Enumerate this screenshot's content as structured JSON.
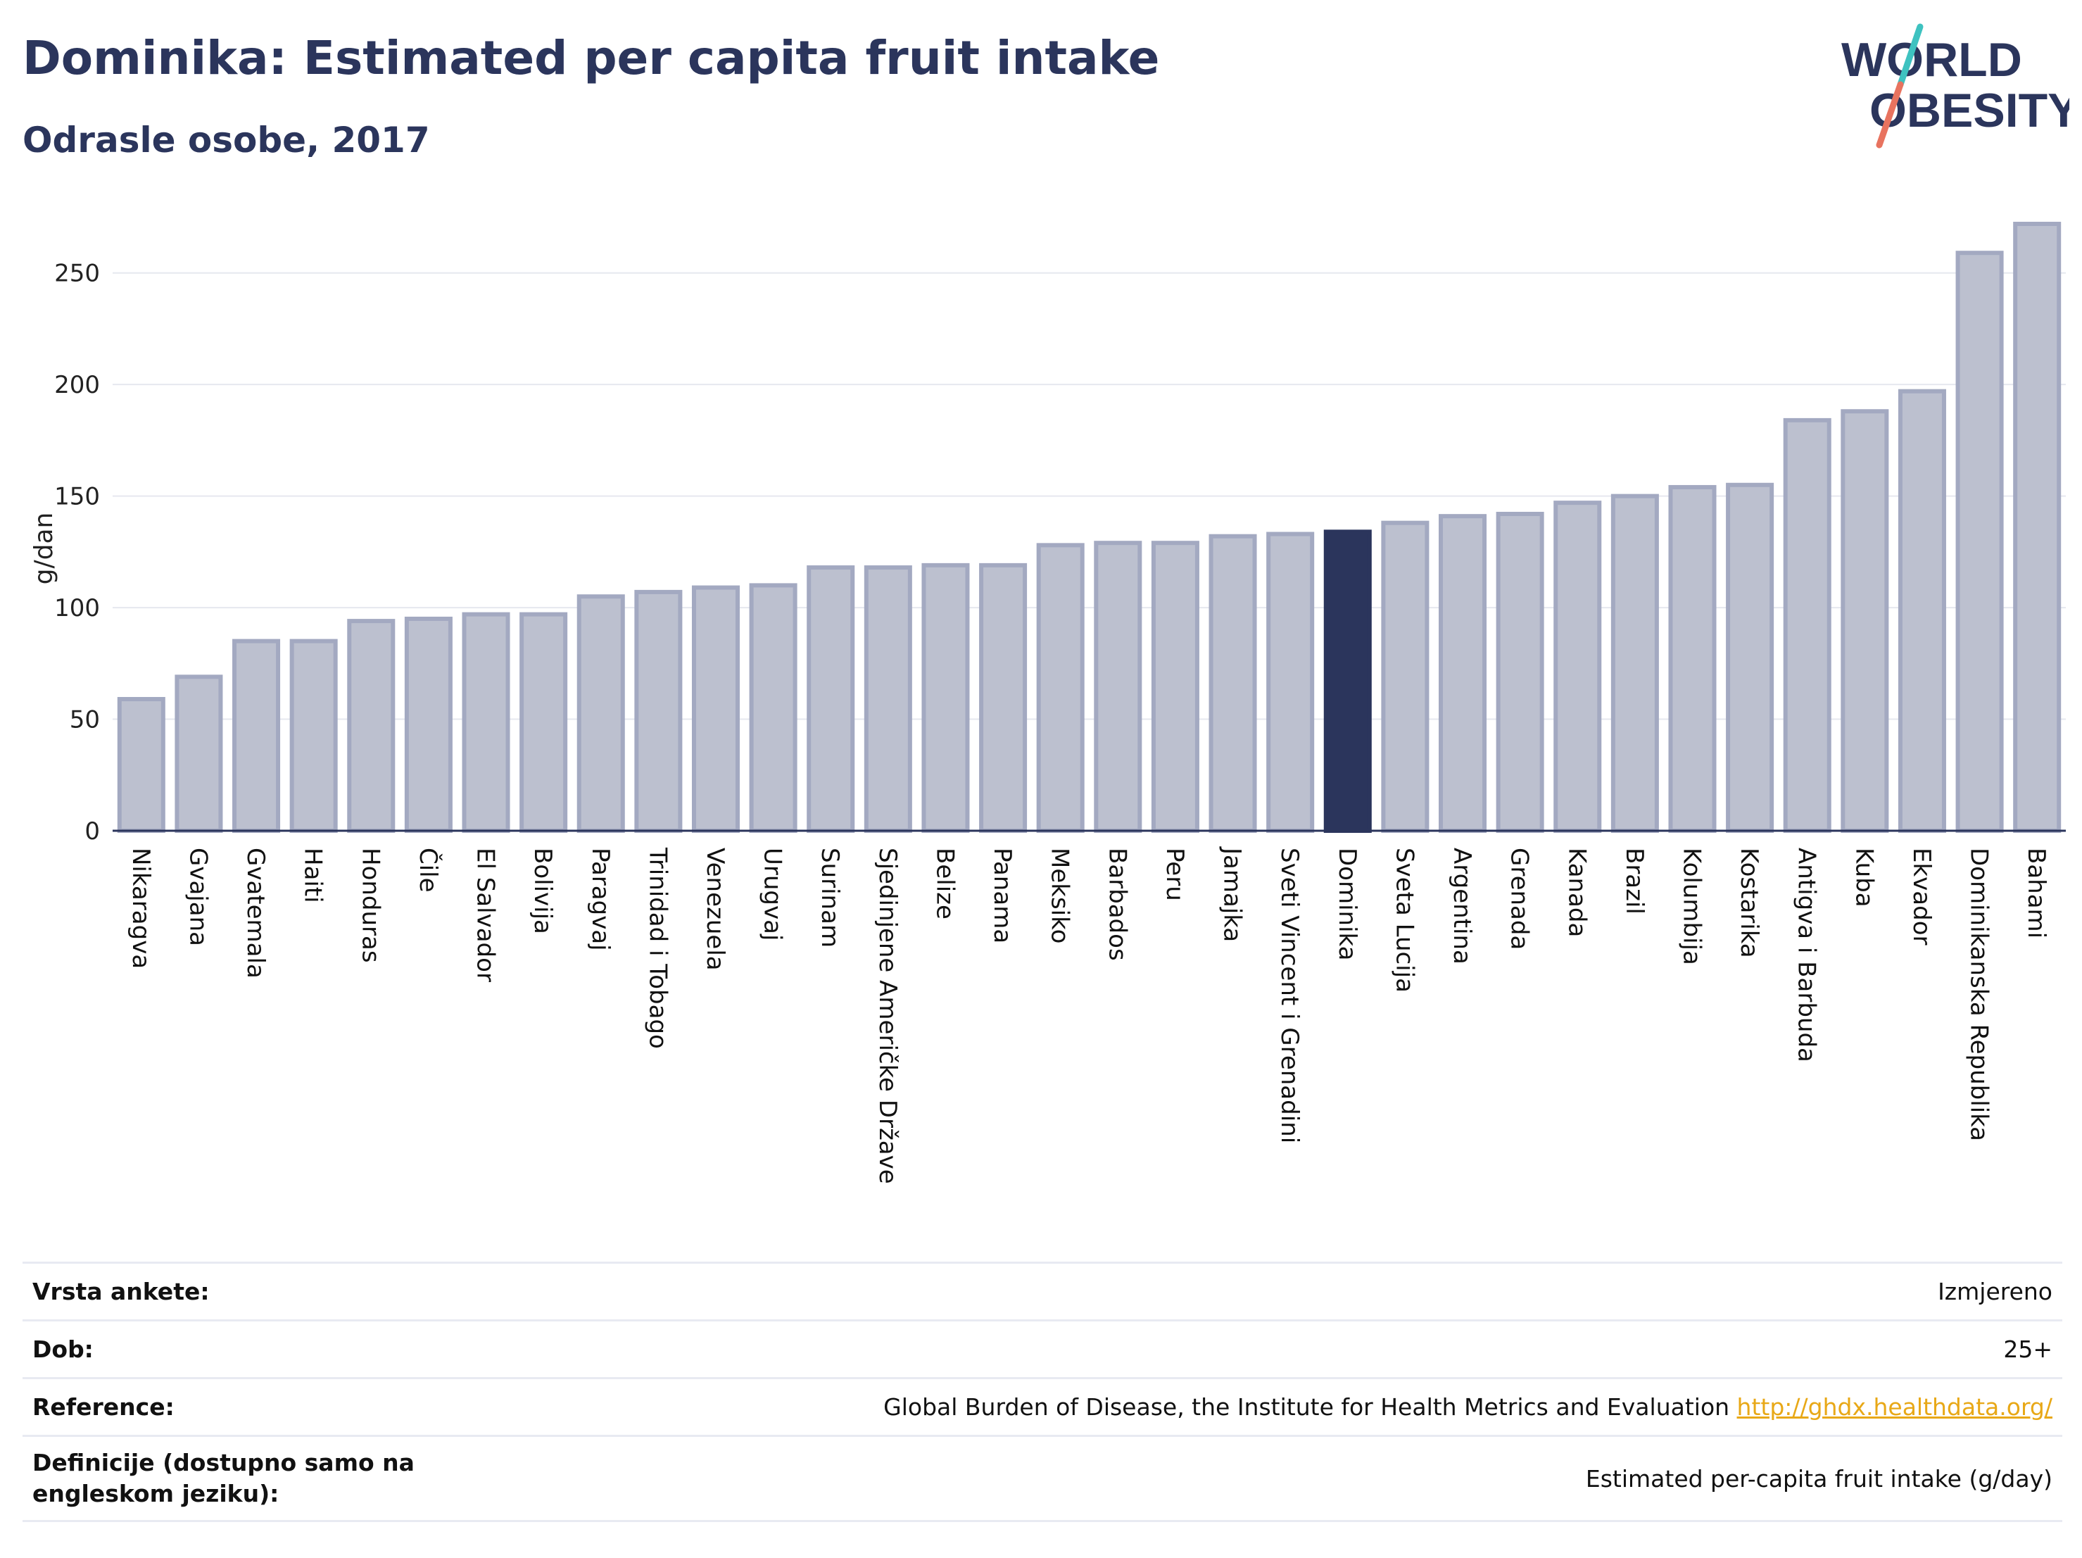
{
  "header": {
    "title": "Dominika: Estimated per capita fruit intake",
    "subtitle": "Odrasle osobe, 2017"
  },
  "logo": {
    "line1": "WORLD",
    "line2": "OBESITY"
  },
  "colors": {
    "bar": "#bcc0cf",
    "bar_edge": "#a3a9c1",
    "highlight": "#2b355c",
    "grid": "#e6e8ef",
    "text": "#2b355c",
    "logo_teal": "#3ec2c0",
    "logo_coral": "#e8735f",
    "link": "#e8a817"
  },
  "chart_data": {
    "type": "bar",
    "title": "Dominika: Estimated per capita fruit intake",
    "subtitle": "Odrasle osobe, 2017",
    "ylabel": "g/dan",
    "xlabel": "",
    "ylim": [
      0,
      272
    ],
    "yticks": [
      0,
      50,
      100,
      150,
      200,
      250
    ],
    "grid": true,
    "highlight": "Dominika",
    "categories": [
      "Nikaragva",
      "Gvajana",
      "Gvatemala",
      "Haiti",
      "Honduras",
      "Čile",
      "El Salvador",
      "Bolivija",
      "Paragvaj",
      "Trinidad i Tobago",
      "Venezuela",
      "Urugvaj",
      "Surinam",
      "Sjedinjene Američke Države",
      "Belize",
      "Panama",
      "Meksiko",
      "Barbados",
      "Peru",
      "Jamajka",
      "Sveti Vincent i Grenadini",
      "Dominika",
      "Sveta Lucija",
      "Argentina",
      "Grenada",
      "Kanada",
      "Brazil",
      "Kolumbija",
      "Kostarika",
      "Antigva i Barbuda",
      "Kuba",
      "Ekvador",
      "Dominikanska Republika",
      "Bahami"
    ],
    "values": [
      59,
      69,
      85,
      85,
      94,
      95,
      97,
      97,
      105,
      107,
      109,
      110,
      118,
      118,
      119,
      119,
      128,
      129,
      129,
      132,
      133,
      134,
      138,
      141,
      142,
      147,
      150,
      154,
      155,
      184,
      188,
      197,
      259,
      272
    ]
  },
  "footer": {
    "rows": [
      {
        "label": "Vrsta ankete:",
        "value": "Izmjereno"
      },
      {
        "label": "Dob:",
        "value": "25+"
      },
      {
        "label": "Reference:",
        "value": "Global Burden of Disease, the Institute for Health Metrics and Evaluation",
        "link": "http://ghdx.healthdata.org/"
      },
      {
        "label": "Definicije (dostupno samo na engleskom jeziku):",
        "value": "Estimated per-capita fruit intake (g/day)"
      }
    ]
  }
}
